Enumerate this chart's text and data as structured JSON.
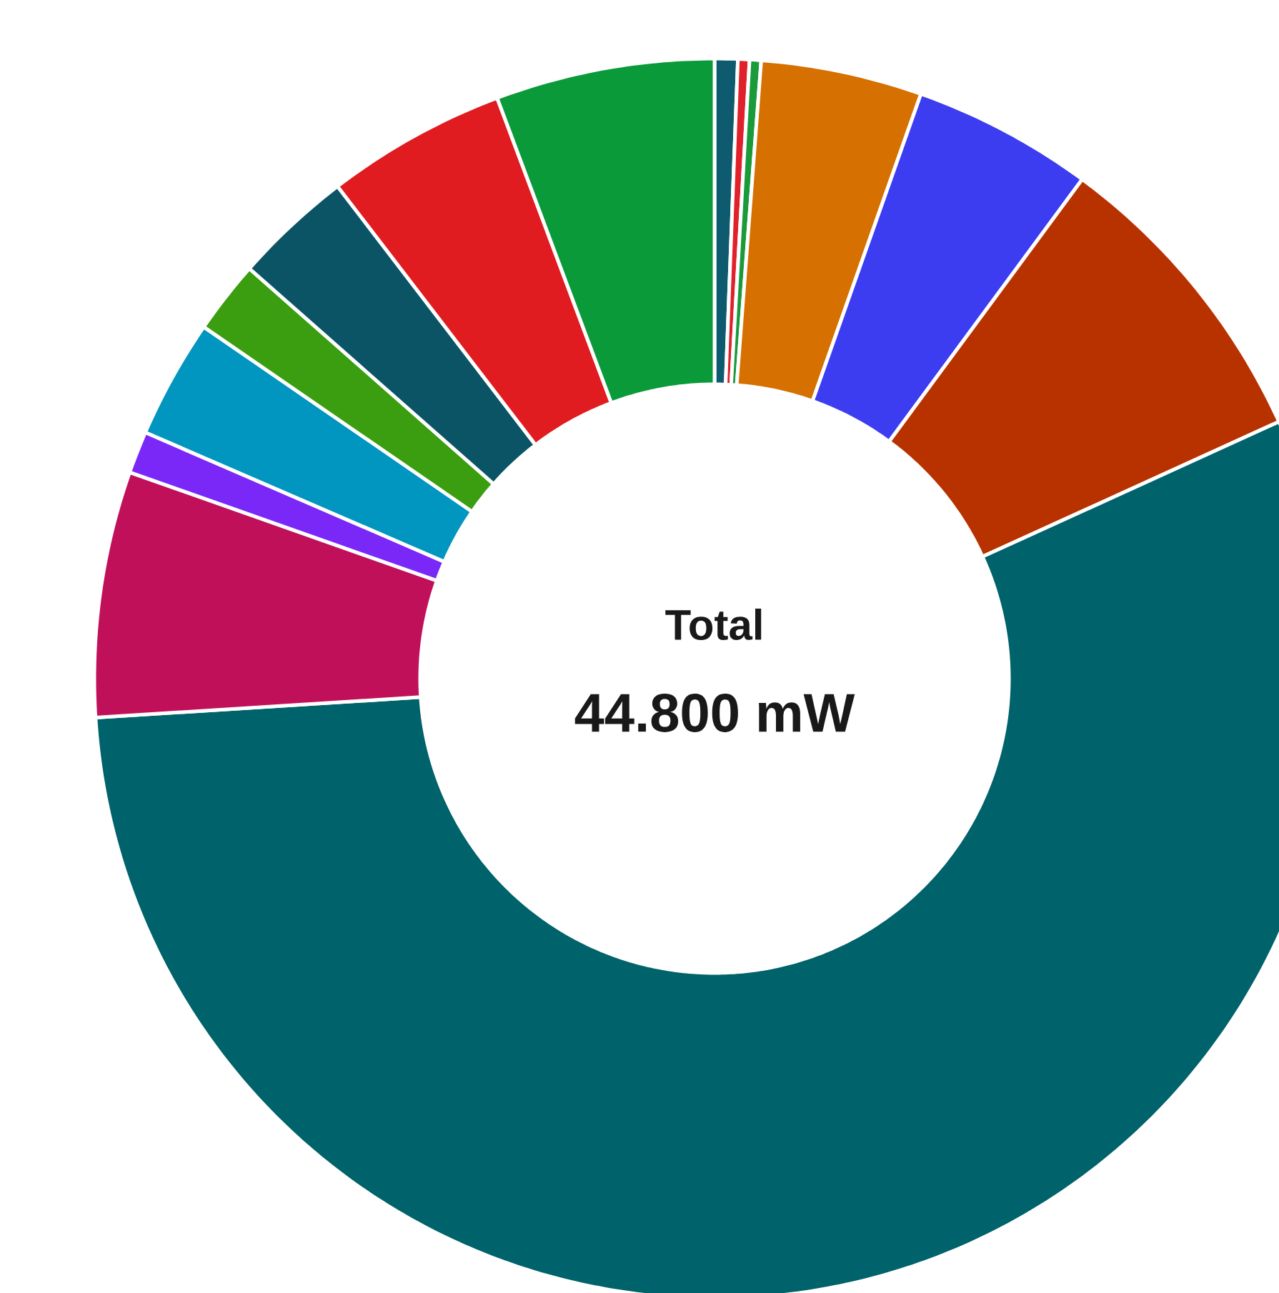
{
  "chart_data": {
    "type": "donut",
    "categories": [
      null,
      null,
      null,
      null,
      null,
      null,
      null,
      null,
      null,
      null,
      null,
      null,
      null,
      null
    ],
    "values": [
      0.6,
      0.3,
      0.3,
      4.2,
      4.7,
      8.1,
      55.8,
      6.4,
      1.1,
      3.1,
      1.9,
      3.1,
      4.7,
      5.7
    ],
    "colors": [
      "#0e5a6e",
      "#e0202a",
      "#1a9a3a",
      "#d67000",
      "#3c3cf0",
      "#b83200",
      "#00626a",
      "#c0105a",
      "#7a28f8",
      "#0096c0",
      "#3a9e10",
      "#0b5466",
      "#e01c20",
      "#0a9a3a"
    ],
    "annotations": [
      "Total",
      "44.800 mW"
    ]
  }
}
